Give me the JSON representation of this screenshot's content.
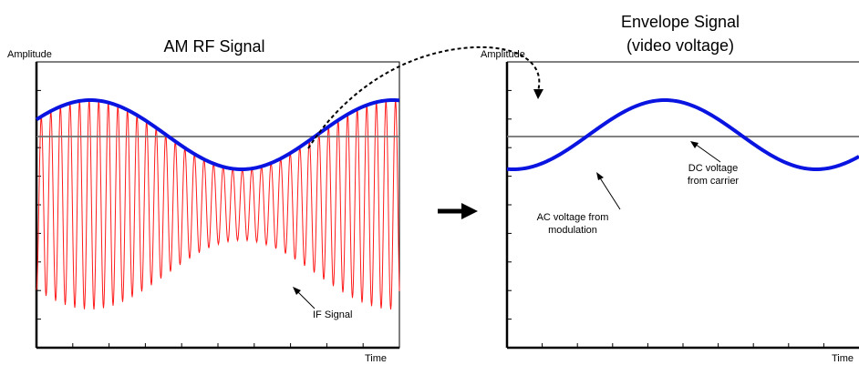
{
  "left_panel": {
    "title": "AM RF Signal",
    "y_label": "Amplitude",
    "x_label": "Time",
    "annotation": "IF Signal"
  },
  "right_panel": {
    "title_line1": "Envelope Signal",
    "title_line2": "(video voltage)",
    "y_label": "Amplitude",
    "x_label": "Time",
    "annotation_ac_line1": "AC voltage from",
    "annotation_ac_line2": "modulation",
    "annotation_dc_line1": "DC voltage",
    "annotation_dc_line2": "from carrier"
  },
  "colors": {
    "envelope": "#0a14e0",
    "rf_signal": "#ff1a1a",
    "dc_line": "#707070",
    "axis": "#000000"
  }
}
